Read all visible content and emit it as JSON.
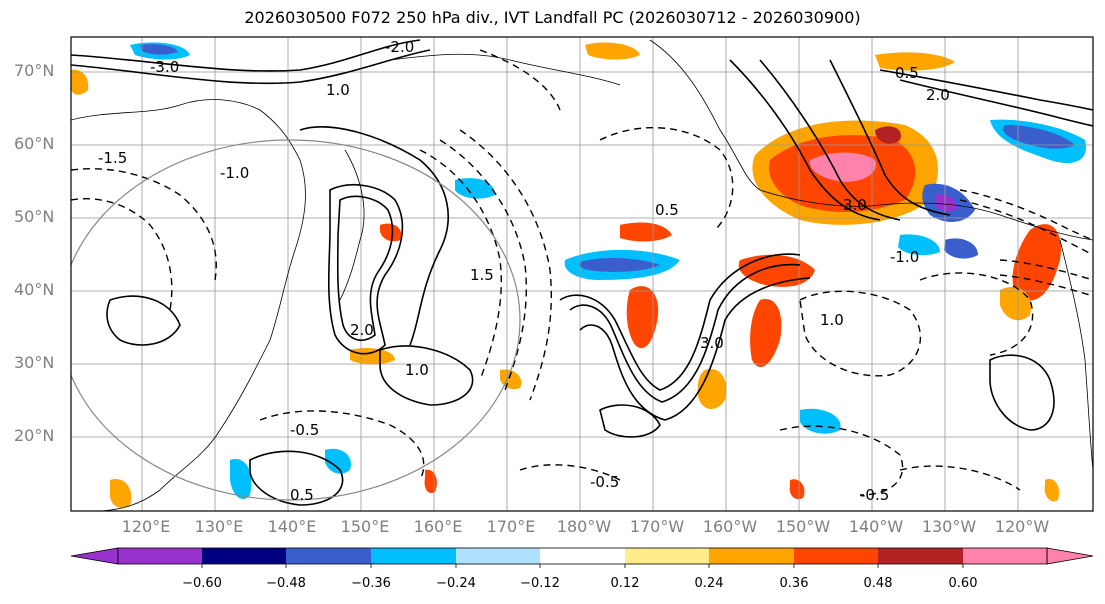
{
  "title": "2026030500 F072 250 hPa div., IVT Landfall PC (2026030712 - 2026030900)",
  "lat_labels": [
    "70°N",
    "60°N",
    "50°N",
    "40°N",
    "30°N",
    "20°N"
  ],
  "lon_labels": [
    "120°E",
    "130°E",
    "140°E",
    "150°E",
    "160°E",
    "170°E",
    "180°W",
    "170°W",
    "160°W",
    "150°W",
    "140°W",
    "130°W",
    "120°W"
  ],
  "colorbar": {
    "ticks": [
      "−0.60",
      "−0.48",
      "−0.36",
      "−0.24",
      "−0.12",
      "0.12",
      "0.24",
      "0.36",
      "0.48",
      "0.60"
    ],
    "colors": [
      "#9932cc",
      "#000080",
      "#3a5fcd",
      "#00bfff",
      "#b0e2ff",
      "#ffffff",
      "#ffec8b",
      "#ffa500",
      "#ff4500",
      "#b22222",
      "#ff82ab"
    ]
  },
  "contour_labels": [
    "3.0",
    "1.0",
    "0.5",
    "-1.0",
    "-1.5",
    "2.0",
    "1.5",
    "-0.5",
    "0.5",
    "3.0",
    "2.0",
    "1.0",
    "-3.0",
    "-2.0",
    "1.0",
    "-0.5",
    "0.5",
    "-1.0",
    "-0.5"
  ]
}
